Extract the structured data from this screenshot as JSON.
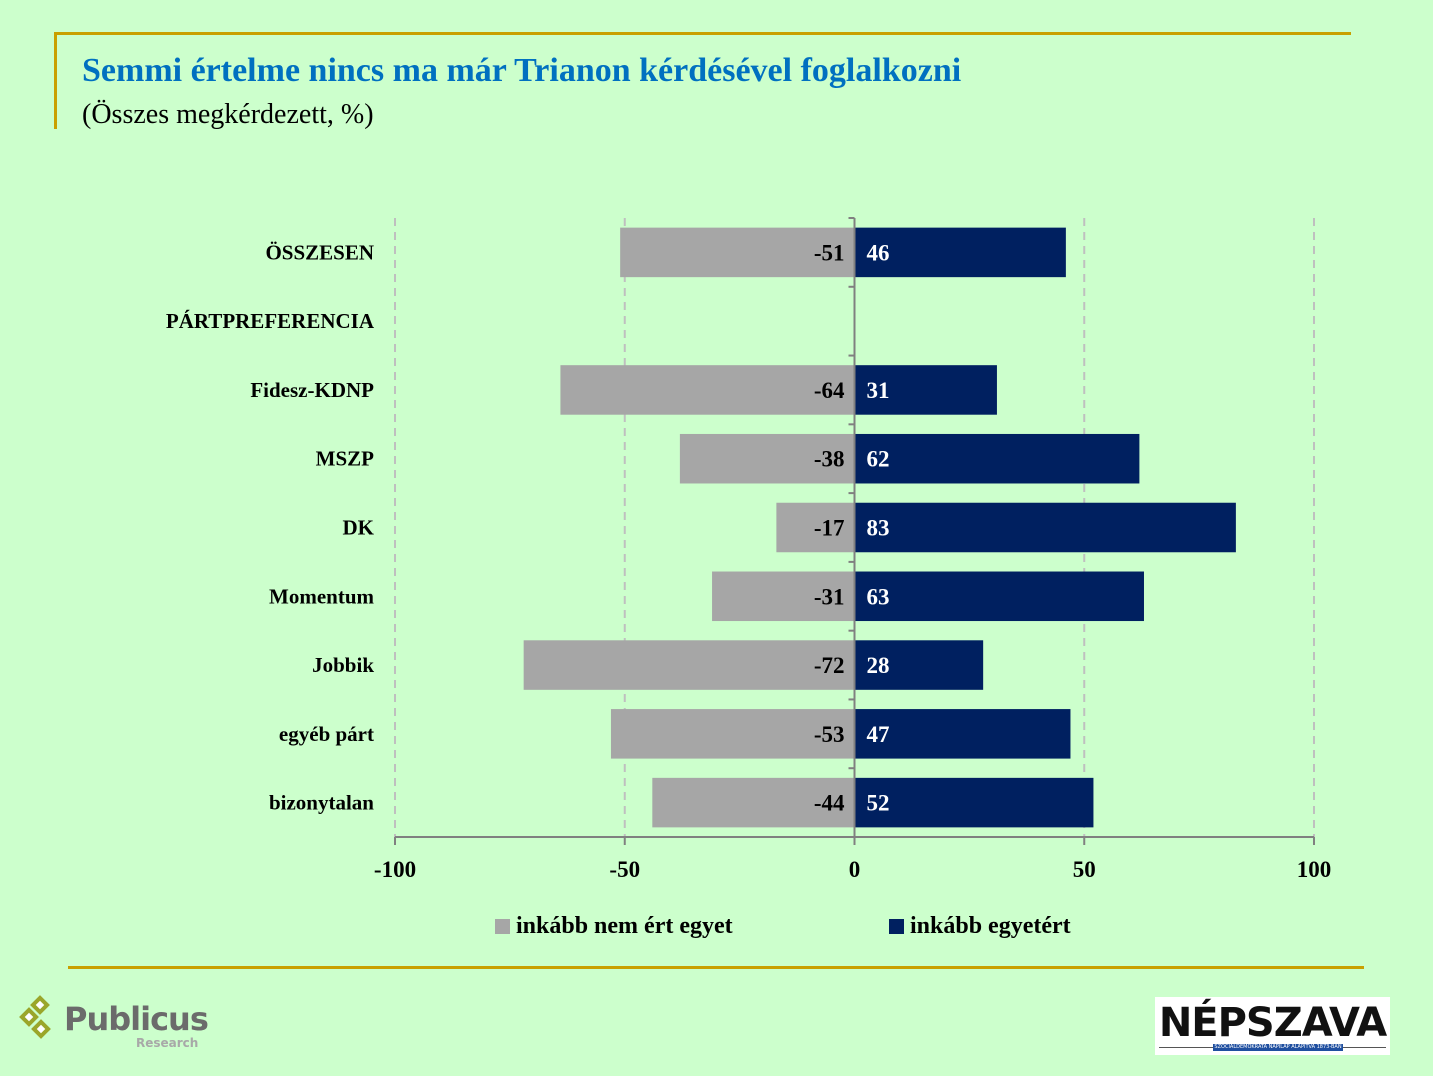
{
  "header": {
    "title": "Semmi értelme nincs ma már Trianon kérdésével foglalkozni",
    "subtitle": "(Összes megkérdezett, %)"
  },
  "colors": {
    "background": "#CCFFCC",
    "accent_line": "#C9A000",
    "title": "#0070C0",
    "disagree": "#A6A6A6",
    "agree": "#002060"
  },
  "chart_data": {
    "type": "bar",
    "orientation": "horizontal",
    "stacked": "diverging",
    "title": "Semmi értelme nincs ma már Trianon kérdésével foglalkozni",
    "subtitle": "(Összes megkérdezett, %)",
    "categories": [
      "ÖSSZESEN",
      "PÁRTPREFERENCIA",
      "Fidesz-KDNP",
      "MSZP",
      "DK",
      "Momentum",
      "Jobbik",
      "egyéb párt",
      "bizonytalan"
    ],
    "category_bold_header": [
      true,
      true,
      false,
      false,
      false,
      false,
      false,
      false,
      false
    ],
    "series": [
      {
        "name": "inkább nem ért egyet",
        "color": "#A6A6A6",
        "values": [
          -51,
          null,
          -64,
          -38,
          -17,
          -31,
          -72,
          -53,
          -44
        ]
      },
      {
        "name": "inkább egyetért",
        "color": "#002060",
        "values": [
          46,
          null,
          31,
          62,
          83,
          63,
          28,
          47,
          52
        ]
      }
    ],
    "xlim": [
      -100,
      100
    ],
    "xticks": [
      -100,
      -50,
      0,
      50,
      100
    ],
    "xtick_labels": [
      "-100",
      "-50",
      "0",
      "50",
      "100"
    ],
    "xlabel": "",
    "ylabel": "",
    "grid": "vertical dashed",
    "legend_position": "bottom"
  },
  "legend": {
    "items": [
      {
        "label": "inkább nem ért egyet",
        "color": "#A6A6A6"
      },
      {
        "label": "inkább egyetért",
        "color": "#002060"
      }
    ]
  },
  "footer": {
    "publicus_logo": {
      "name": "Publicus",
      "sub": "Research"
    },
    "nepszava_logo": {
      "name": "NÉPSZAVA",
      "band": "SZOCIÁLDEMOKRATA NAPILAP      ALAPÍTVA 1873-BAN"
    }
  }
}
